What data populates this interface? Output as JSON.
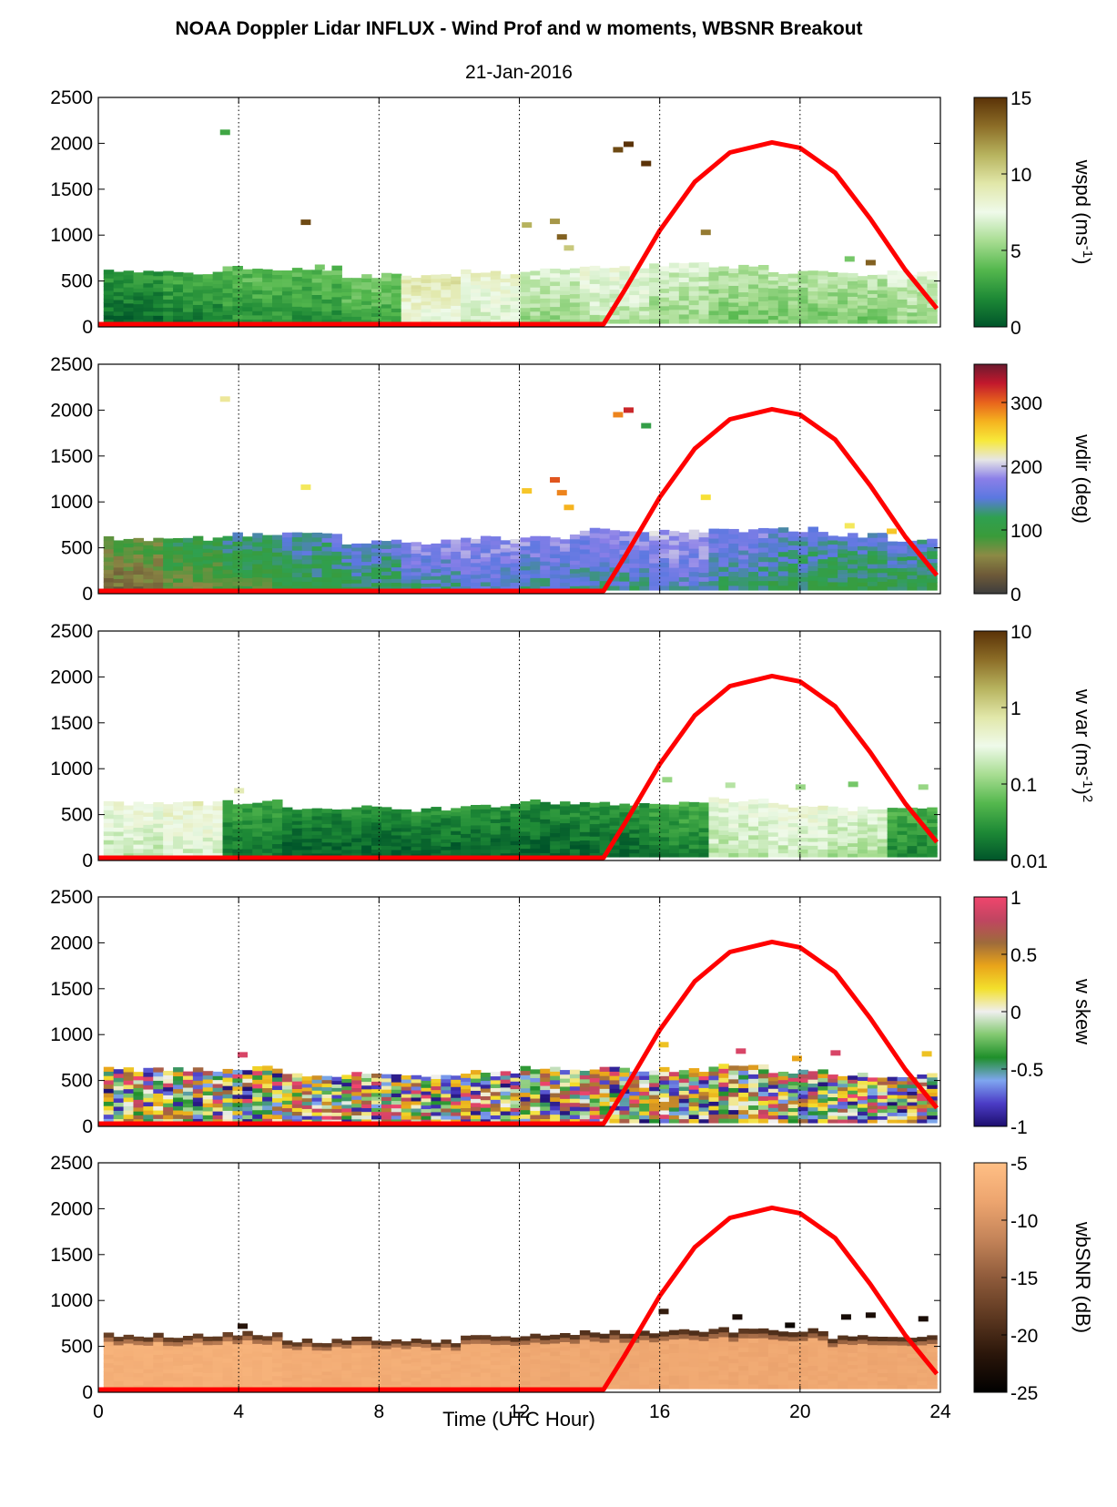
{
  "figure": {
    "title": "NOAA Doppler Lidar INFLUX - Wind Prof and w moments, WBSNR Breakout",
    "subtitle": "21-Jan-2016",
    "xlabel": "Time (UTC Hour)"
  },
  "chart_data": {
    "type": "heatmap",
    "x_label": "Time (UTC Hour)",
    "xlim": [
      0,
      24
    ],
    "x_ticks": [
      "0",
      "4",
      "8",
      "12",
      "16",
      "20",
      "24"
    ],
    "y_ticks": [
      "0",
      "500",
      "1000",
      "1500",
      "2000",
      "2500"
    ],
    "ylim": [
      0,
      2500
    ],
    "grid": "vertical dotted lines at x=4,8,12,16,20,24",
    "sun_curve": {
      "color": "#ff0000",
      "description": "red solar elevation overlay",
      "x": [
        0,
        14.4,
        15,
        16,
        17,
        18,
        19.2,
        20,
        21,
        22,
        23,
        23.9
      ],
      "y": [
        30,
        30,
        400,
        1050,
        1580,
        1900,
        2010,
        1950,
        1680,
        1180,
        620,
        200
      ]
    },
    "panels": [
      {
        "id": "wspd",
        "colorbar_label": "wspd (ms-1)",
        "colorbar_ticks": [
          "0",
          "5",
          "10",
          "15"
        ],
        "colormap": [
          "#00552a",
          "#1e8a36",
          "#55b84e",
          "#a8dd92",
          "#effaea",
          "#e1e7a9",
          "#b7b35e",
          "#8c6d27",
          "#5a3207"
        ],
        "layer_top": [
          600,
          600,
          640,
          640,
          560,
          560,
          600,
          620,
          640,
          680,
          660,
          600,
          580,
          590
        ],
        "layer_value": [
          0.05,
          0.1,
          0.15,
          0.15,
          0.2,
          0.5,
          0.45,
          0.35,
          0.4,
          0.35,
          0.3,
          0.3,
          0.3,
          0.35
        ],
        "sparse_points": [
          [
            3.6,
            2120,
            0.2
          ],
          [
            5.9,
            1140,
            0.95
          ],
          [
            6.3,
            650,
            0.3
          ],
          [
            12.2,
            1110,
            0.75
          ],
          [
            13.0,
            1150,
            0.8
          ],
          [
            13.2,
            980,
            0.9
          ],
          [
            13.4,
            860,
            0.7
          ],
          [
            14.8,
            1930,
            0.95
          ],
          [
            15.1,
            1990,
            1.0
          ],
          [
            15.6,
            1780,
            1.0
          ],
          [
            17.3,
            1030,
            0.85
          ],
          [
            21.4,
            740,
            0.3
          ],
          [
            22.0,
            700,
            0.9
          ]
        ]
      },
      {
        "id": "wdir",
        "colorbar_label": "wdir (deg)",
        "colorbar_ticks": [
          "0",
          "100",
          "200",
          "300"
        ],
        "colormap": [
          "#3d3d3d",
          "#6e5a38",
          "#8c8a45",
          "#3a9b3a",
          "#2fa050",
          "#5b78e0",
          "#8a7fe8",
          "#e6e6e6",
          "#f7e93a",
          "#f5b31f",
          "#e8641c",
          "#c2182d",
          "#6b1a2e"
        ],
        "layer_top": [
          600,
          600,
          640,
          640,
          560,
          560,
          600,
          620,
          700,
          680,
          700,
          700,
          640,
          580
        ],
        "layer_value": [
          0.12,
          0.2,
          0.25,
          0.3,
          0.32,
          0.38,
          0.4,
          0.38,
          0.38,
          0.42,
          0.36,
          0.32,
          0.3,
          0.3
        ],
        "sparse_points": [
          [
            3.6,
            2120,
            0.62
          ],
          [
            5.9,
            1160,
            0.65
          ],
          [
            12.2,
            1120,
            0.72
          ],
          [
            13.0,
            1240,
            0.85
          ],
          [
            13.2,
            1100,
            0.8
          ],
          [
            13.4,
            940,
            0.75
          ],
          [
            14.8,
            1950,
            0.8
          ],
          [
            15.1,
            2000,
            0.9
          ],
          [
            15.6,
            1830,
            0.3
          ],
          [
            17.3,
            1050,
            0.68
          ],
          [
            21.4,
            740,
            0.65
          ],
          [
            22.6,
            680,
            0.72
          ]
        ]
      },
      {
        "id": "w_var",
        "colorbar_label": "w var (ms-1)2",
        "colorbar_ticks": [
          "0.01",
          "0.1",
          "1",
          "10"
        ],
        "colormap": [
          "#00552a",
          "#1e8a36",
          "#55b84e",
          "#a8dd92",
          "#effaea",
          "#e1e7a9",
          "#b7b35e",
          "#8c6d27",
          "#5a3207"
        ],
        "layer_top": [
          620,
          620,
          640,
          560,
          580,
          560,
          600,
          640,
          620,
          620,
          660,
          600,
          560,
          560
        ],
        "layer_value": [
          0.42,
          0.45,
          0.08,
          0.02,
          0.02,
          0.03,
          0.03,
          0.03,
          0.04,
          0.1,
          0.4,
          0.42,
          0.38,
          0.12
        ],
        "sparse_points": [
          [
            4.0,
            760,
            0.6
          ],
          [
            16.2,
            880,
            0.35
          ],
          [
            18.0,
            820,
            0.4
          ],
          [
            20.0,
            800,
            0.35
          ],
          [
            21.5,
            830,
            0.3
          ],
          [
            23.5,
            800,
            0.35
          ]
        ]
      },
      {
        "id": "w_skew",
        "colorbar_label": "w skew",
        "colorbar_ticks": [
          "-1",
          "-0.5",
          "0",
          "0.5",
          "1"
        ],
        "colormap": [
          "#1d0e6e",
          "#4b3cc6",
          "#7fa6f0",
          "#1f8f2a",
          "#83c971",
          "#efefef",
          "#f3e02c",
          "#e9a41a",
          "#9e6b3b",
          "#c04561",
          "#f0456d"
        ],
        "layer_top": [
          620,
          620,
          640,
          560,
          580,
          560,
          600,
          640,
          620,
          620,
          660,
          600,
          560,
          560
        ],
        "layer_value": [
          0.5,
          0.5,
          0.5,
          0.5,
          0.5,
          0.5,
          0.55,
          0.55,
          0.6,
          0.6,
          0.6,
          0.6,
          0.55,
          0.55
        ],
        "sparse_points": [
          [
            4.1,
            780,
            0.95
          ],
          [
            16.1,
            890,
            0.65
          ],
          [
            18.3,
            820,
            0.95
          ],
          [
            19.9,
            740,
            0.7
          ],
          [
            21.0,
            800,
            0.95
          ],
          [
            23.6,
            790,
            0.65
          ]
        ]
      },
      {
        "id": "wbsnr",
        "colorbar_label": "wbSNR (dB)",
        "colorbar_ticks": [
          "-25",
          "-20",
          "-15",
          "-10",
          "-5"
        ],
        "colormap": [
          "#000000",
          "#2b160a",
          "#5e3921",
          "#8f5b3b",
          "#c48459",
          "#eda56f",
          "#ffbf85"
        ],
        "layer_top": [
          620,
          620,
          640,
          560,
          580,
          560,
          600,
          640,
          660,
          660,
          680,
          680,
          600,
          600
        ],
        "layer_value": [
          0.9,
          0.9,
          0.9,
          0.88,
          0.88,
          0.88,
          0.88,
          0.85,
          0.85,
          0.85,
          0.85,
          0.85,
          0.85,
          0.85
        ],
        "sparse_points": [
          [
            4.1,
            720,
            0.15
          ],
          [
            16.1,
            880,
            0.2
          ],
          [
            18.2,
            820,
            0.1
          ],
          [
            19.7,
            730,
            0.05
          ],
          [
            21.3,
            820,
            0.08
          ],
          [
            22.0,
            840,
            0.1
          ],
          [
            23.5,
            800,
            0.1
          ]
        ]
      }
    ]
  }
}
